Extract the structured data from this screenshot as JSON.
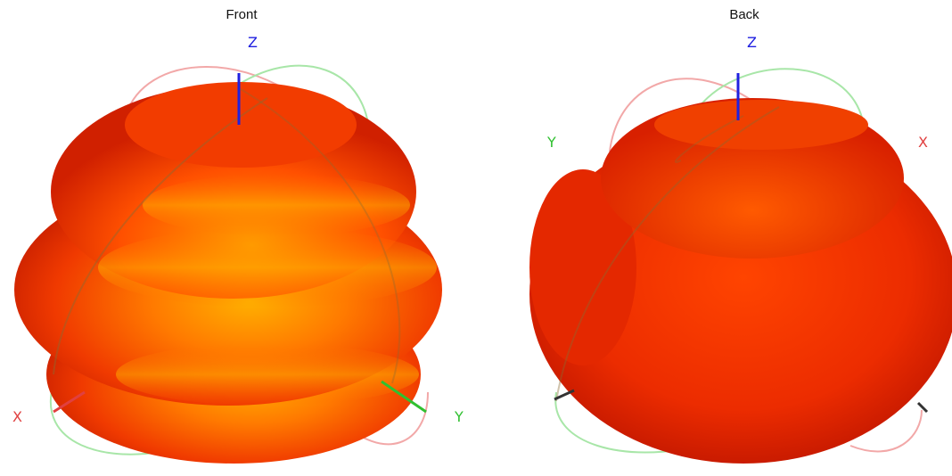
{
  "views": [
    {
      "title": "Front",
      "axes": {
        "z": "Z",
        "x": "X",
        "y": "Y"
      }
    },
    {
      "title": "Back",
      "axes": {
        "z": "Z",
        "x": "X",
        "y": "Y"
      }
    }
  ],
  "colors": {
    "x_axis": "#e04040",
    "y_axis": "#30c030",
    "z_axis": "#2020e0",
    "surface_hot": "#ffb000",
    "surface_mid": "#ff4a00",
    "surface_dark": "#c01800",
    "ring_red": "#f0a0a0",
    "ring_green": "#a0e0a0"
  }
}
